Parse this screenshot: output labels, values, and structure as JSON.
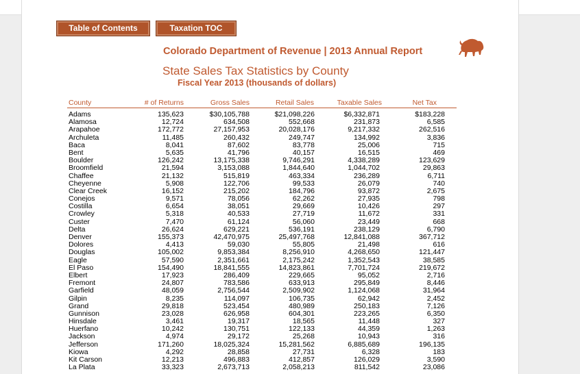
{
  "nav": {
    "toc_label": "Table of Contents",
    "taxation_label": "Taxation TOC"
  },
  "header": {
    "department": "Colorado Department of Revenue | 2013 Annual Report",
    "title": "State Sales Tax Statistics by County",
    "subtitle": "Fiscal Year 2013 (thousands of dollars)",
    "logo_icon": "buffalo-icon"
  },
  "colors": {
    "accent": "#c05a30",
    "button": "#b0542a"
  },
  "table": {
    "columns": [
      "County",
      "# of Returns",
      "Gross Sales",
      "Retail Sales",
      "Taxable Sales",
      "Net Tax"
    ],
    "rows": [
      [
        "Adams",
        "135,623",
        "$30,105,788",
        "$21,098,226",
        "$6,332,871",
        "$183,228"
      ],
      [
        "Alamosa",
        "12,724",
        "634,508",
        "552,668",
        "231,873",
        "6,585"
      ],
      [
        "Arapahoe",
        "172,772",
        "27,157,953",
        "20,028,176",
        "9,217,332",
        "262,516"
      ],
      [
        "Archuleta",
        "11,485",
        "260,432",
        "249,747",
        "134,992",
        "3,836"
      ],
      [
        "Baca",
        "8,041",
        "87,602",
        "83,778",
        "25,006",
        "715"
      ],
      [
        "Bent",
        "5,635",
        "41,796",
        "40,157",
        "16,515",
        "469"
      ],
      [
        "Boulder",
        "126,242",
        "13,175,338",
        "9,746,291",
        "4,338,289",
        "123,629"
      ],
      [
        "Broomfield",
        "21,594",
        "3,153,088",
        "1,844,640",
        "1,044,702",
        "29,863"
      ],
      [
        "Chaffee",
        "21,132",
        "515,819",
        "463,334",
        "236,289",
        "6,711"
      ],
      [
        "Cheyenne",
        "5,908",
        "122,706",
        "99,533",
        "26,079",
        "740"
      ],
      [
        "Clear Creek",
        "16,152",
        "215,202",
        "184,796",
        "93,872",
        "2,675"
      ],
      [
        "Conejos",
        "9,571",
        "78,056",
        "62,262",
        "27,935",
        "798"
      ],
      [
        "Costilla",
        "6,654",
        "38,051",
        "29,669",
        "10,426",
        "297"
      ],
      [
        "Crowley",
        "5,318",
        "40,533",
        "27,719",
        "11,672",
        "331"
      ],
      [
        "Custer",
        "7,470",
        "61,124",
        "56,060",
        "23,449",
        "668"
      ],
      [
        "Delta",
        "26,624",
        "629,221",
        "536,191",
        "238,129",
        "6,790"
      ],
      [
        "Denver",
        "155,373",
        "42,470,975",
        "25,497,768",
        "12,841,088",
        "367,712"
      ],
      [
        "Dolores",
        "4,413",
        "59,030",
        "55,805",
        "21,498",
        "616"
      ],
      [
        "Douglas",
        "105,002",
        "9,853,384",
        "8,256,910",
        "4,268,650",
        "121,447"
      ],
      [
        "Eagle",
        "57,590",
        "2,351,661",
        "2,175,242",
        "1,352,543",
        "38,585"
      ],
      [
        "El Paso",
        "154,490",
        "18,841,555",
        "14,823,861",
        "7,701,724",
        "219,672"
      ],
      [
        "Elbert",
        "17,923",
        "286,409",
        "229,665",
        "95,052",
        "2,716"
      ],
      [
        "Fremont",
        "24,807",
        "783,586",
        "633,913",
        "295,849",
        "8,446"
      ],
      [
        "Garfield",
        "48,059",
        "2,756,544",
        "2,509,902",
        "1,124,068",
        "31,964"
      ],
      [
        "Gilpin",
        "8,235",
        "114,097",
        "106,735",
        "62,942",
        "2,452"
      ],
      [
        "Grand",
        "29,818",
        "523,454",
        "480,989",
        "250,183",
        "7,126"
      ],
      [
        "Gunnison",
        "23,028",
        "626,958",
        "604,301",
        "223,265",
        "6,350"
      ],
      [
        "Hinsdale",
        "3,461",
        "19,317",
        "18,565",
        "11,448",
        "327"
      ],
      [
        "Huerfano",
        "10,242",
        "130,751",
        "122,133",
        "44,359",
        "1,263"
      ],
      [
        "Jackson",
        "4,974",
        "29,172",
        "25,268",
        "10,943",
        "316"
      ],
      [
        "Jefferson",
        "171,260",
        "18,025,324",
        "15,281,562",
        "6,885,689",
        "196,135"
      ],
      [
        "Kiowa",
        "4,292",
        "28,858",
        "27,731",
        "6,328",
        "183"
      ],
      [
        "Kit Carson",
        "12,213",
        "496,883",
        "412,857",
        "126,029",
        "3,590"
      ],
      [
        "La Plata",
        "33,323",
        "2,673,713",
        "2,058,213",
        "811,542",
        "23,086"
      ]
    ]
  }
}
